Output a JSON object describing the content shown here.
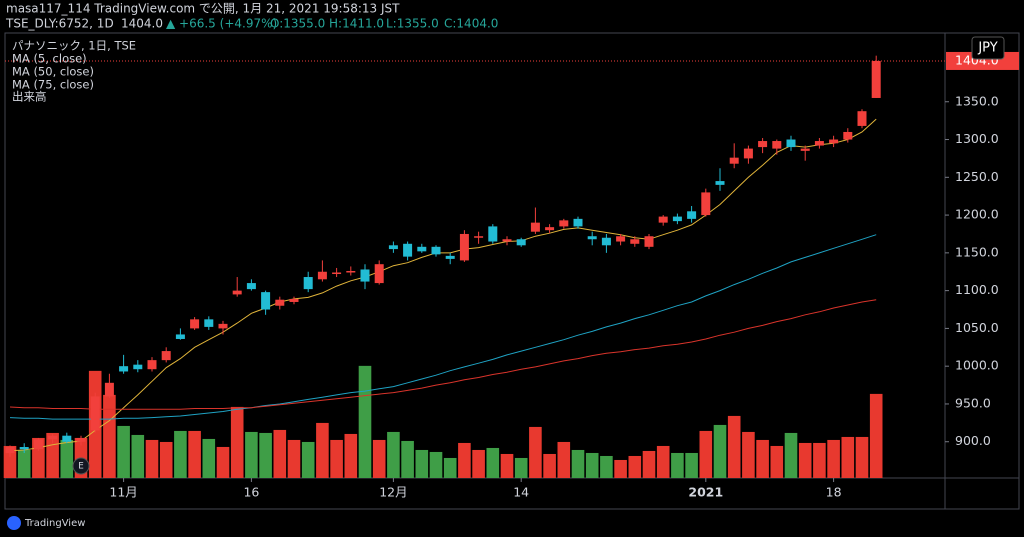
{
  "header": {
    "line1": "masa117_114 TradingView.com で公開, 1月 21, 2021 19:58:13 JST",
    "symbol": "TSE_DLY:6752, 1D",
    "last": "1404.0",
    "change": "▲ +66.5 (+4.97%)",
    "open": "O:1355.0",
    "high": "H:1411.0",
    "low": "L:1355.0",
    "close": "C:1404.0"
  },
  "chart_data": {
    "type": "candlestick",
    "title": "パナソニック, 1日, TSE",
    "currency": "JPY",
    "earnings_marker": "E",
    "categories": [
      null,
      null,
      null,
      null,
      null,
      null,
      null,
      null,
      "11月",
      null,
      null,
      null,
      null,
      null,
      null,
      null,
      null,
      "16",
      null,
      null,
      null,
      null,
      null,
      null,
      null,
      null,
      null,
      "12月",
      null,
      null,
      null,
      null,
      null,
      null,
      null,
      null,
      "14",
      null,
      null,
      null,
      null,
      null,
      null,
      null,
      null,
      null,
      null,
      null,
      null,
      "2021",
      null,
      null,
      null,
      null,
      null,
      null,
      null,
      null,
      "18",
      null,
      null,
      null
    ],
    "open": [
      885,
      893,
      890,
      903,
      908,
      900,
      915,
      960,
      1000,
      1002,
      996,
      1008,
      1042,
      1050,
      1062,
      1050,
      1095,
      1110,
      1098,
      1080,
      1085,
      1118,
      1115,
      1122,
      1124,
      1128,
      1110,
      1160,
      1162,
      1158,
      1158,
      1146,
      1140,
      1170,
      1185,
      1165,
      1168,
      1178,
      1180,
      1185,
      1195,
      1172,
      1170,
      1165,
      1162,
      1158,
      1190,
      1198,
      1205,
      1200,
      1245,
      1268,
      1275,
      1290,
      1288,
      1300,
      1285,
      1292,
      1295,
      1300,
      1318,
      1355
    ],
    "high": [
      895,
      898,
      905,
      910,
      912,
      908,
      965,
      990,
      1015,
      1008,
      1012,
      1025,
      1050,
      1065,
      1066,
      1060,
      1118,
      1115,
      1100,
      1092,
      1092,
      1125,
      1140,
      1130,
      1132,
      1135,
      1140,
      1165,
      1165,
      1162,
      1160,
      1150,
      1180,
      1178,
      1188,
      1172,
      1170,
      1210,
      1188,
      1195,
      1198,
      1178,
      1175,
      1175,
      1172,
      1175,
      1200,
      1202,
      1212,
      1235,
      1262,
      1295,
      1292,
      1302,
      1300,
      1305,
      1292,
      1302,
      1305,
      1315,
      1340,
      1411
    ],
    "low": [
      880,
      885,
      888,
      898,
      898,
      895,
      912,
      958,
      990,
      992,
      993,
      1005,
      1035,
      1048,
      1048,
      1042,
      1092,
      1100,
      1068,
      1075,
      1082,
      1098,
      1112,
      1118,
      1120,
      1102,
      1108,
      1150,
      1140,
      1150,
      1145,
      1135,
      1138,
      1162,
      1162,
      1160,
      1158,
      1175,
      1176,
      1182,
      1182,
      1160,
      1150,
      1160,
      1158,
      1155,
      1186,
      1188,
      1190,
      1198,
      1232,
      1262,
      1268,
      1282,
      1280,
      1285,
      1272,
      1288,
      1290,
      1296,
      1315,
      1355
    ],
    "close": [
      893,
      890,
      903,
      908,
      900,
      905,
      960,
      978,
      993,
      996,
      1008,
      1020,
      1036,
      1062,
      1052,
      1056,
      1100,
      1102,
      1075,
      1088,
      1089,
      1102,
      1125,
      1124,
      1126,
      1112,
      1135,
      1155,
      1145,
      1152,
      1148,
      1142,
      1175,
      1172,
      1165,
      1168,
      1160,
      1190,
      1184,
      1193,
      1185,
      1168,
      1160,
      1172,
      1168,
      1172,
      1198,
      1192,
      1195,
      1230,
      1240,
      1276,
      1288,
      1298,
      1298,
      1290,
      1288,
      1298,
      1300,
      1310,
      1337.5,
      1404
    ],
    "up_color": "#f2403c",
    "down_color": "#22bcd4",
    "volume": {
      "name": "出来高",
      "values": [
        6.4,
        5.6,
        8,
        9,
        7.6,
        8,
        21.4,
        16.6,
        10.4,
        8.6,
        7.6,
        7.2,
        9.4,
        9.4,
        7.8,
        6.2,
        14.2,
        9.2,
        9,
        9.6,
        7.6,
        7.2,
        11,
        7.6,
        8.8,
        22.4,
        7.6,
        9.2,
        7.4,
        5.6,
        5.2,
        4,
        7,
        5.6,
        6,
        4.8,
        4,
        10.2,
        4.8,
        7.2,
        5.6,
        5,
        4.4,
        3.6,
        4.4,
        5.4,
        6.4,
        5,
        5,
        9.4,
        10.6,
        12.4,
        9.2,
        7.6,
        6.4,
        9,
        7,
        7,
        7.6,
        8.2,
        8.2,
        16.8
      ],
      "up_color": "#e8392f",
      "down_color": "#3f9e47"
    },
    "series": [
      {
        "name": "MA (5, close)",
        "color": "#e0b43a",
        "values": [
          888,
          889,
          892,
          896,
          899,
          901,
          915,
          928,
          945,
          962,
          980,
          998,
          1010,
          1025,
          1035,
          1045,
          1057,
          1070,
          1077,
          1085,
          1089,
          1091,
          1097,
          1106,
          1113,
          1118,
          1125,
          1133,
          1137,
          1144,
          1150,
          1150,
          1155,
          1157,
          1161,
          1165,
          1166,
          1172,
          1176,
          1181,
          1183,
          1180,
          1177,
          1174,
          1170,
          1168,
          1174,
          1180,
          1187,
          1200,
          1214,
          1232,
          1250,
          1266,
          1283,
          1292,
          1290,
          1293,
          1295,
          1300,
          1310,
          1327
        ]
      },
      {
        "name": "MA (50, close)",
        "color": "#1fa3c4",
        "values": [
          932,
          931,
          931,
          930,
          930,
          930,
          930,
          930,
          931,
          931,
          932,
          933,
          934,
          936,
          938,
          940,
          943,
          945,
          948,
          950,
          953,
          956,
          959,
          962,
          965,
          967,
          970,
          973,
          978,
          983,
          988,
          994,
          999,
          1004,
          1009,
          1015,
          1020,
          1025,
          1030,
          1035,
          1041,
          1046,
          1052,
          1057,
          1063,
          1068,
          1074,
          1080,
          1085,
          1093,
          1100,
          1108,
          1115,
          1123,
          1130,
          1138,
          1144,
          1150,
          1156,
          1162,
          1168,
          1174
        ]
      },
      {
        "name": "MA (75, close)",
        "color": "#d9342b",
        "values": [
          946,
          945,
          945,
          944,
          944,
          944,
          943,
          943,
          943,
          943,
          943,
          943,
          943,
          944,
          944,
          944,
          945,
          945,
          947,
          949,
          951,
          953,
          955,
          957,
          959,
          961,
          963,
          965,
          968,
          971,
          975,
          978,
          982,
          985,
          989,
          992,
          996,
          999,
          1003,
          1007,
          1010,
          1014,
          1017,
          1019,
          1022,
          1024,
          1027,
          1029,
          1032,
          1036,
          1041,
          1045,
          1050,
          1054,
          1059,
          1063,
          1068,
          1072,
          1077,
          1081,
          1085,
          1088
        ]
      }
    ],
    "ylim": [
      852,
      1441
    ],
    "yticks": [
      {
        "value": 900,
        "label": "900.0"
      },
      {
        "value": 950,
        "label": "950.0"
      },
      {
        "value": 1000,
        "label": "1000.0"
      },
      {
        "value": 1050,
        "label": "1050.0"
      },
      {
        "value": 1100,
        "label": "1100.0"
      },
      {
        "value": 1150,
        "label": "1150.0"
      },
      {
        "value": 1200,
        "label": "1200.0"
      },
      {
        "value": 1250,
        "label": "1250.0"
      },
      {
        "value": 1300,
        "label": "1300.0"
      },
      {
        "value": 1350,
        "label": "1350.0"
      }
    ]
  },
  "footer": {
    "brand": "TradingView"
  }
}
